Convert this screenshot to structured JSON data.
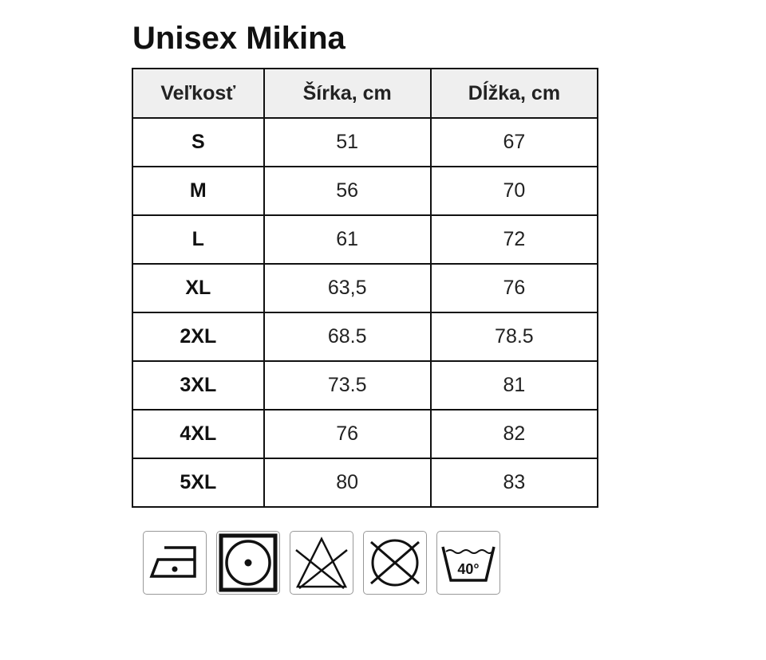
{
  "title": "Unisex Mikina",
  "table": {
    "headers": [
      "Veľkosť",
      "Šírka, cm",
      "Dĺžka, cm"
    ],
    "rows": [
      [
        "S",
        "51",
        "67"
      ],
      [
        "M",
        "56",
        "70"
      ],
      [
        "L",
        "61",
        "72"
      ],
      [
        "XL",
        "63,5",
        "76"
      ],
      [
        "2XL",
        "68.5",
        "78.5"
      ],
      [
        "3XL",
        "73.5",
        "81"
      ],
      [
        "4XL",
        "76",
        "82"
      ],
      [
        "5XL",
        "80",
        "83"
      ]
    ]
  },
  "care_icons": [
    {
      "name": "iron-low-heat-icon"
    },
    {
      "name": "tumble-dry-icon"
    },
    {
      "name": "do-not-bleach-icon"
    },
    {
      "name": "do-not-dry-clean-icon"
    },
    {
      "name": "wash-40-icon",
      "label": "40°"
    }
  ]
}
